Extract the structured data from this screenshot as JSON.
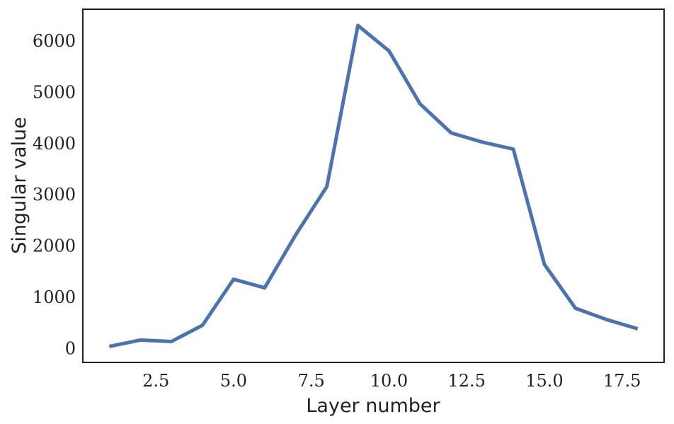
{
  "chart_data": {
    "type": "line",
    "xlabel": "Layer number",
    "ylabel": "Singular value",
    "x": [
      1,
      2,
      3,
      4,
      5,
      6,
      7,
      8,
      9,
      10,
      11,
      12,
      13,
      14,
      15,
      16,
      17,
      18
    ],
    "series": [
      {
        "color": "#4c72b0",
        "values": [
          41,
          166,
          138,
          455,
          1352,
          1186,
          2220,
          3159,
          6303,
          5807,
          4772,
          4207,
          4028,
          3890,
          1641,
          786,
          566,
          386
        ]
      }
    ],
    "xlim": [
      0.15,
      18.85
    ],
    "xticks": [
      2.5,
      {
        "value": 5,
        "label": "5.0"
      },
      7.5,
      {
        "value": 10,
        "label": "10.0"
      },
      12.5,
      {
        "value": 15,
        "label": "15.0"
      },
      17.5
    ],
    "ylim": [
      -270,
      6620
    ],
    "yticks": [
      0,
      1000,
      2000,
      3000,
      4000,
      5000,
      6000
    ]
  }
}
